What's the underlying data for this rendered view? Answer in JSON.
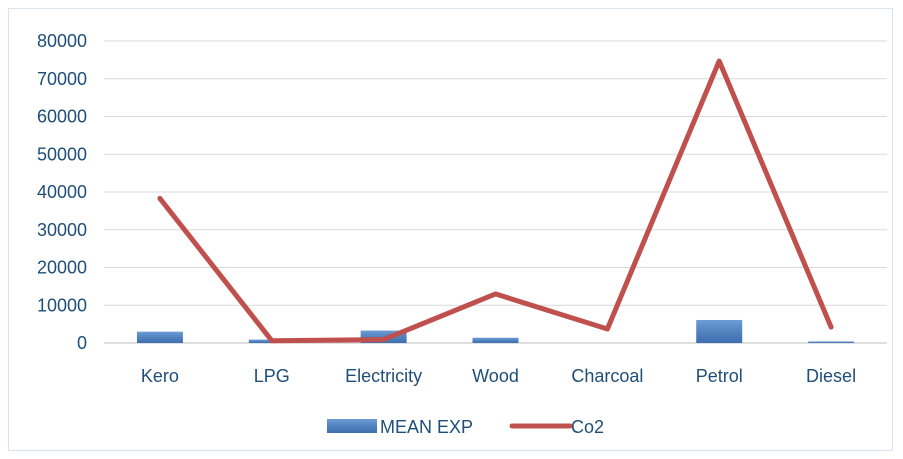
{
  "chart_data": {
    "type": "bar",
    "categories": [
      "Kero",
      "LPG",
      "Electricity",
      "Wood",
      "Charcoal",
      "Petrol",
      "Diesel"
    ],
    "series": [
      {
        "name": "MEAN EXP",
        "type": "bar",
        "values": [
          3000,
          900,
          3300,
          1400,
          0,
          6100,
          400
        ],
        "color": "#4f81bd"
      },
      {
        "name": "Co2",
        "type": "line",
        "values": [
          38300,
          600,
          900,
          13000,
          3700,
          74700,
          4200
        ],
        "color": "#c0504d"
      }
    ],
    "yticks": [
      "0",
      "10000",
      "20000",
      "30000",
      "40000",
      "50000",
      "60000",
      "70000",
      "80000"
    ],
    "ylim": [
      0,
      80000
    ],
    "grid": true,
    "legend_position": "bottom",
    "title": "",
    "xlabel": "",
    "ylabel": ""
  }
}
